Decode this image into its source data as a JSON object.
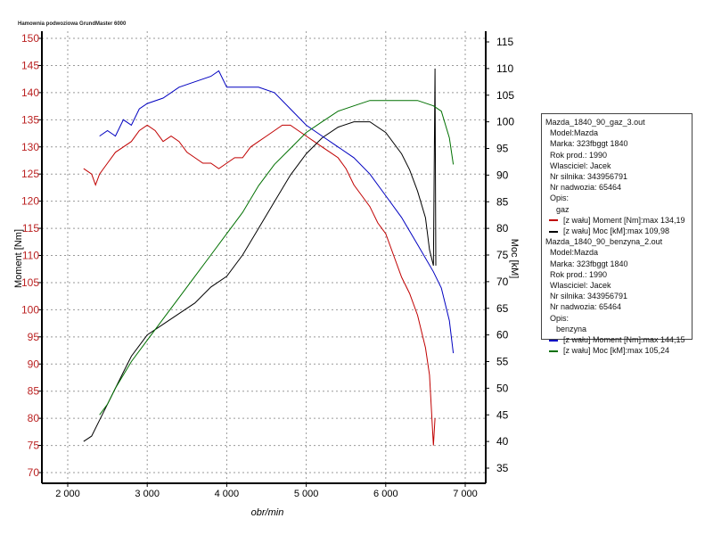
{
  "chart_data": {
    "type": "line",
    "title": "Hamownia podwoziowa GrundMaster 6000",
    "xlabel": "obr/min",
    "ylabel": "Moment [Nm]",
    "y2label": "Moc [kM]",
    "xlim": [
      1700,
      7250
    ],
    "ylim": [
      68.5,
      151.5
    ],
    "y2lim": [
      33,
      117
    ],
    "xticks": [
      2000,
      3000,
      4000,
      5000,
      6000,
      7000
    ],
    "xtick_labels": [
      "2 000",
      "3 000",
      "4 000",
      "5 000",
      "6 000",
      "7 000"
    ],
    "yticks": [
      70,
      75,
      80,
      85,
      90,
      95,
      100,
      105,
      110,
      115,
      120,
      125,
      130,
      135,
      140,
      145,
      150
    ],
    "y2ticks": [
      35,
      40,
      45,
      50,
      55,
      60,
      65,
      70,
      75,
      80,
      85,
      90,
      95,
      100,
      105,
      110,
      115
    ],
    "grid": true,
    "legend_position": "right",
    "series": [
      {
        "name": "[z wału] Moment [Nm]:max 134,19",
        "file": "gaz",
        "axis": "left",
        "color": "#c00000",
        "x": [
          2200,
          2300,
          2350,
          2400,
          2500,
          2600,
          2700,
          2800,
          2900,
          3000,
          3100,
          3200,
          3300,
          3400,
          3500,
          3600,
          3700,
          3800,
          3900,
          4000,
          4100,
          4200,
          4300,
          4400,
          4500,
          4600,
          4700,
          4800,
          4900,
          5000,
          5100,
          5200,
          5300,
          5400,
          5500,
          5600,
          5700,
          5800,
          5900,
          6000,
          6100,
          6200,
          6300,
          6400,
          6500,
          6550,
          6600,
          6620
        ],
        "y": [
          126,
          125,
          123,
          125,
          127,
          129,
          130,
          131,
          133,
          134,
          133,
          131,
          132,
          131,
          129,
          128,
          127,
          127,
          126,
          127,
          128,
          128,
          130,
          131,
          132,
          133,
          134,
          134,
          133,
          132,
          131,
          130,
          129,
          128,
          126,
          123,
          121,
          119,
          116,
          114,
          110,
          106,
          103,
          99,
          93,
          88,
          75,
          80
        ]
      },
      {
        "name": "[z wału] Moc [kM]:max 109,98",
        "file": "gaz",
        "axis": "right",
        "color": "#000000",
        "x": [
          2200,
          2300,
          2400,
          2500,
          2600,
          2700,
          2800,
          2900,
          3000,
          3200,
          3400,
          3600,
          3800,
          4000,
          4200,
          4400,
          4600,
          4800,
          5000,
          5200,
          5400,
          5600,
          5800,
          6000,
          6200,
          6300,
          6400,
          6500,
          6550,
          6600,
          6620,
          6630
        ],
        "y": [
          40,
          41,
          44,
          47,
          50,
          53,
          56,
          58,
          60,
          62,
          64,
          66,
          69,
          71,
          75,
          80,
          85,
          90,
          94,
          97,
          99,
          100,
          100,
          98,
          94,
          91,
          87,
          82,
          76,
          73,
          110,
          73
        ]
      },
      {
        "name": "[z wału] Moment [Nm]:max 144,15",
        "file": "benzyna",
        "axis": "left",
        "color": "#0000c0",
        "x": [
          2400,
          2500,
          2600,
          2700,
          2800,
          2900,
          3000,
          3200,
          3400,
          3600,
          3800,
          3900,
          4000,
          4200,
          4400,
          4600,
          4800,
          5000,
          5200,
          5400,
          5600,
          5800,
          6000,
          6200,
          6400,
          6600,
          6700,
          6800,
          6850
        ],
        "y": [
          132,
          133,
          132,
          135,
          134,
          137,
          138,
          139,
          141,
          142,
          143,
          144,
          141,
          141,
          141,
          140,
          137,
          134,
          132,
          130,
          128,
          125,
          121,
          117,
          112,
          107,
          104,
          98,
          92
        ]
      },
      {
        "name": "[z wału] Moc [kM]:max 105,24",
        "file": "benzyna",
        "axis": "right",
        "color": "#007000",
        "x": [
          2400,
          2500,
          2600,
          2800,
          3000,
          3200,
          3400,
          3600,
          3800,
          4000,
          4200,
          4400,
          4600,
          4800,
          5000,
          5200,
          5400,
          5600,
          5800,
          6000,
          6200,
          6400,
          6600,
          6700,
          6800,
          6850
        ],
        "y": [
          45,
          47,
          50,
          55,
          59,
          63,
          67,
          71,
          75,
          79,
          83,
          88,
          92,
          95,
          98,
          100,
          102,
          103,
          104,
          104,
          104,
          104,
          103,
          102,
          97,
          92
        ]
      }
    ]
  },
  "legend": {
    "files": [
      {
        "name": "Mazda_1840_90_gaz_3.out",
        "model": "Model:Mazda",
        "marka": "Marka: 323fbggt 1840",
        "rok": "Rok prod.: 1990",
        "wlasciciel": "Wlasciciel: Jacek",
        "silnik": "Nr silnika: 343956791",
        "nadwozie": "Nr nadwozia: 65464",
        "opis_label": "Opis:",
        "opis": "gaz",
        "s1": "[z wału] Moment [Nm]:max 134,19",
        "s2": "[z wału] Moc [kM]:max 109,98",
        "c1": "#c00000",
        "c2": "#000000"
      },
      {
        "name": "Mazda_1840_90_benzyna_2.out",
        "model": "Model:Mazda",
        "marka": "Marka: 323fbggt 1840",
        "rok": "Rok prod.: 1990",
        "wlasciciel": "Wlasciciel: Jacek",
        "silnik": "Nr silnika: 343956791",
        "nadwozie": "Nr nadwozia: 65464",
        "opis_label": "Opis:",
        "opis": "benzyna",
        "s1": "[z wału] Moment [Nm]:max 144,15",
        "s2": "[z wału] Moc [kM]:max 105,24",
        "c1": "#0000c0",
        "c2": "#007000"
      }
    ]
  }
}
